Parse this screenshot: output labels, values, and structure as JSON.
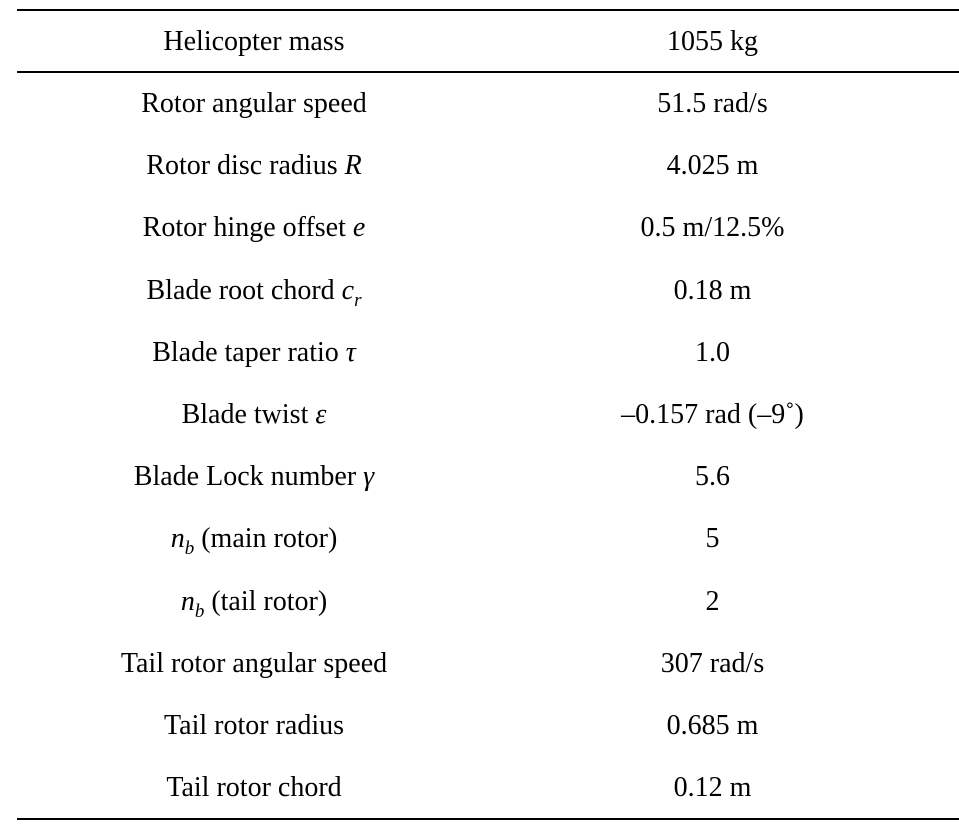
{
  "header": {
    "param": "Helicopter mass",
    "value": "1055 kg"
  },
  "rows": [
    {
      "label": "Rotor angular speed",
      "symbol": "",
      "subscript": "",
      "suffix": "",
      "value": "51.5 rad/s"
    },
    {
      "label": "Rotor disc radius ",
      "symbol": "R",
      "subscript": "",
      "suffix": "",
      "value": "4.025 m"
    },
    {
      "label": "Rotor hinge offset ",
      "symbol": "e",
      "subscript": "",
      "suffix": "",
      "value": "0.5 m/12.5%"
    },
    {
      "label": "Blade root chord ",
      "symbol": "c",
      "subscript": "r",
      "suffix": "",
      "value": "0.18 m"
    },
    {
      "label": "Blade taper ratio ",
      "symbol": "τ",
      "subscript": "",
      "suffix": "",
      "value": "1.0"
    },
    {
      "label": "Blade twist ",
      "symbol": "ε",
      "subscript": "",
      "suffix": "",
      "value": "–0.157 rad (–9˚)"
    },
    {
      "label": "Blade Lock number ",
      "symbol": "γ",
      "subscript": "",
      "suffix": "",
      "value": "5.6"
    },
    {
      "label": "",
      "symbol": "n",
      "subscript": "b",
      "suffix": " (main rotor)",
      "value": "5"
    },
    {
      "label": "",
      "symbol": "n",
      "subscript": "b",
      "suffix": " (tail rotor)",
      "value": "2"
    },
    {
      "label": "Tail rotor angular speed",
      "symbol": "",
      "subscript": "",
      "suffix": "",
      "value": "307 rad/s"
    },
    {
      "label": "Tail rotor radius",
      "symbol": "",
      "subscript": "",
      "suffix": "",
      "value": "0.685 m"
    },
    {
      "label": "Tail rotor chord",
      "symbol": "",
      "subscript": "",
      "suffix": "",
      "value": "0.12 m"
    }
  ]
}
